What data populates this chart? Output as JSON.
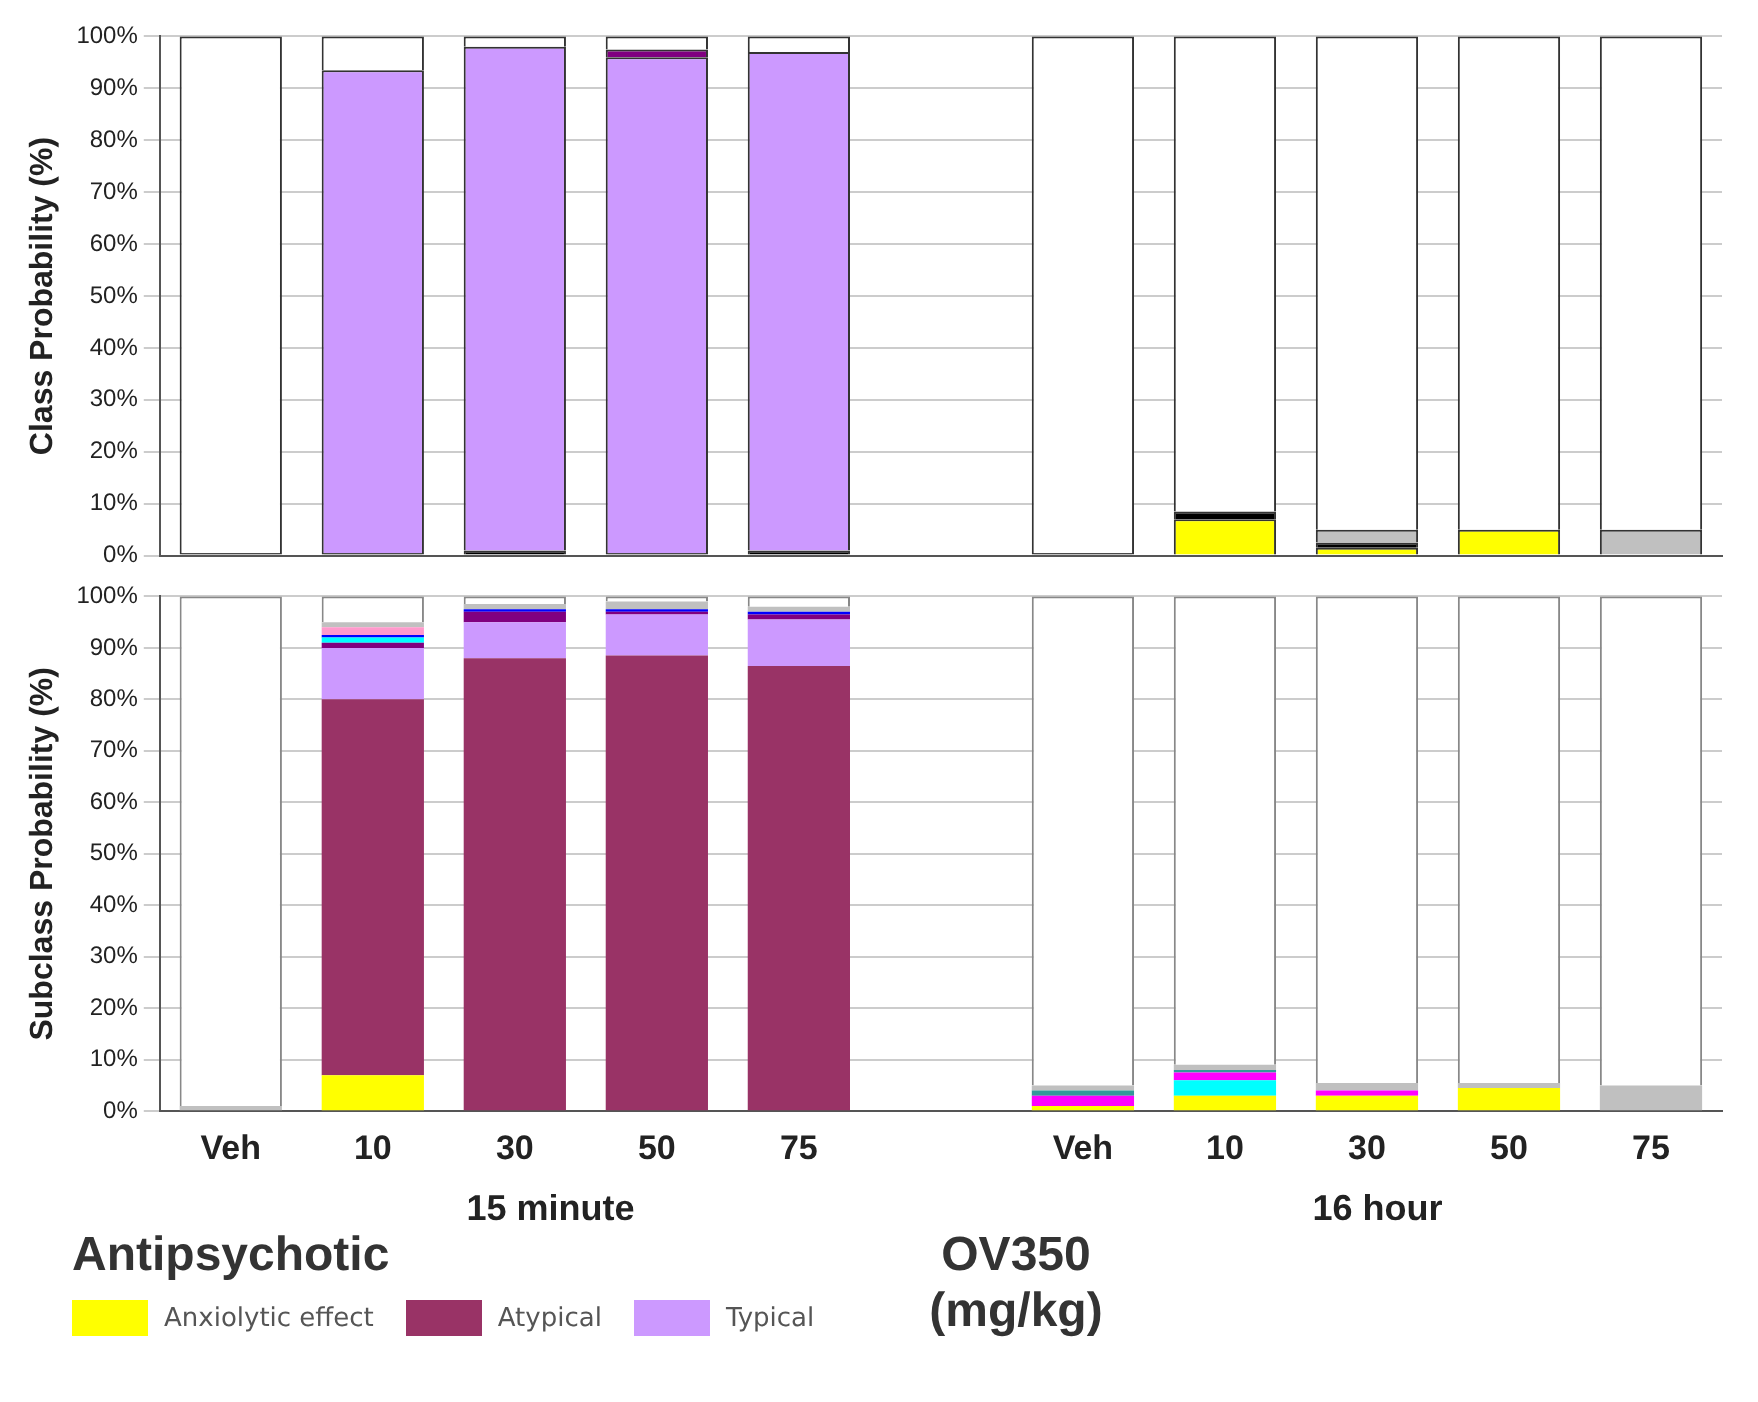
{
  "chart_data": [
    {
      "type": "bar",
      "stacked": true,
      "ylabel": "Class Probability (%)",
      "categories": [
        null,
        null,
        null,
        null,
        null,
        null,
        null,
        null,
        null,
        null,
        null
      ],
      "tick_labels": "y",
      "grid": "y",
      "ylim": [
        0,
        100
      ],
      "yticks": [
        {
          "value": 0,
          "label": "0%"
        },
        {
          "value": 10,
          "label": "10%"
        },
        {
          "value": 20,
          "label": "20%"
        },
        {
          "value": 30,
          "label": "30%"
        },
        {
          "value": 40,
          "label": "40%"
        },
        {
          "value": 50,
          "label": "50%"
        },
        {
          "value": 60,
          "label": "60%"
        },
        {
          "value": 70,
          "label": "70%"
        },
        {
          "value": 80,
          "label": "80%"
        },
        {
          "value": 90,
          "label": "90%"
        },
        {
          "value": 100,
          "label": "100%"
        }
      ],
      "series": [
        {
          "color": "#ffff00",
          "values": [
            0,
            0,
            0,
            0,
            0,
            null,
            0,
            7,
            1.5,
            5,
            0
          ]
        },
        {
          "color": "#000000",
          "values": [
            0.5,
            0.5,
            1,
            0.5,
            1,
            null,
            0.5,
            1.5,
            1,
            0,
            0
          ]
        },
        {
          "color": "#cc99ff",
          "values": [
            0,
            93,
            97,
            95.5,
            96,
            null,
            0,
            0,
            0,
            0,
            0
          ]
        },
        {
          "color": "#800080",
          "values": [
            0,
            0,
            0,
            1.5,
            0,
            null,
            0,
            0,
            0,
            0,
            0
          ]
        },
        {
          "color": "#c0c0c0",
          "values": [
            0,
            0,
            0,
            0,
            0,
            null,
            0,
            0,
            2.5,
            0,
            5
          ]
        },
        {
          "color": "#ffffff",
          "values": [
            99.5,
            6.5,
            2,
            2.5,
            3,
            null,
            99.5,
            91.5,
            95,
            95,
            95
          ]
        }
      ]
    },
    {
      "type": "bar",
      "stacked": true,
      "ylabel": "Subclass Probability (%)",
      "xlabel": "OV350 (mg/kg)",
      "legend_title": "Antipsychotic",
      "legend": "bottom left",
      "annotations": [
        "15 minute",
        "16 hour"
      ],
      "categories": [
        "Veh",
        "10",
        "30",
        "50",
        "75",
        null,
        "Veh",
        "10",
        "30",
        "50",
        "75"
      ],
      "grid": "y",
      "ylim": [
        0,
        100
      ],
      "yticks": [
        {
          "value": 0,
          "label": "0%"
        },
        {
          "value": 10,
          "label": "10%"
        },
        {
          "value": 20,
          "label": "20%"
        },
        {
          "value": 30,
          "label": "30%"
        },
        {
          "value": 40,
          "label": "40%"
        },
        {
          "value": 50,
          "label": "50%"
        },
        {
          "value": 60,
          "label": "60%"
        },
        {
          "value": 70,
          "label": "70%"
        },
        {
          "value": 80,
          "label": "80%"
        },
        {
          "value": 90,
          "label": "90%"
        },
        {
          "value": 100,
          "label": "100%"
        }
      ],
      "series": [
        {
          "name": "Anxiolytic effect",
          "color": "#ffff00",
          "values": [
            0,
            7,
            0,
            0,
            0,
            null,
            1,
            3,
            3,
            4.5,
            0
          ]
        },
        {
          "name": "Atypical",
          "color": "#993366",
          "values": [
            0,
            73,
            88,
            88.5,
            86.5,
            null,
            0,
            0,
            0,
            0,
            0
          ]
        },
        {
          "name": "Typical",
          "color": "#cc99ff",
          "values": [
            0,
            10,
            7,
            8,
            9,
            null,
            0,
            0,
            0,
            0,
            0
          ]
        },
        {
          "color": "#800080",
          "values": [
            0,
            1,
            2,
            0.5,
            1,
            null,
            0,
            0,
            0,
            0,
            0
          ]
        },
        {
          "color": "#00ffff",
          "values": [
            0,
            1,
            0,
            0,
            0,
            null,
            0,
            3,
            0,
            0,
            0
          ]
        },
        {
          "color": "#0000ff",
          "values": [
            0,
            0.5,
            0.5,
            0.5,
            0.5,
            null,
            0,
            0,
            0,
            0,
            0
          ]
        },
        {
          "color": "#ff00ff",
          "values": [
            0,
            0,
            0,
            0,
            0,
            null,
            2,
            1.5,
            1,
            0,
            0
          ]
        },
        {
          "color": "#339999",
          "values": [
            0,
            0,
            0,
            0,
            0,
            null,
            1,
            0.5,
            0,
            0,
            0
          ]
        },
        {
          "color": "#ff99cc",
          "values": [
            0,
            1.5,
            0,
            0,
            0,
            null,
            0,
            0,
            0,
            0,
            0
          ]
        },
        {
          "color": "#c0c0c0",
          "values": [
            1,
            1,
            1,
            1.5,
            1,
            null,
            1,
            1,
            1.5,
            1,
            5
          ]
        },
        {
          "color": "#ffffff",
          "values": [
            99,
            5,
            1.5,
            1,
            2,
            null,
            95,
            91,
            94.5,
            94.5,
            95
          ]
        }
      ]
    }
  ]
}
